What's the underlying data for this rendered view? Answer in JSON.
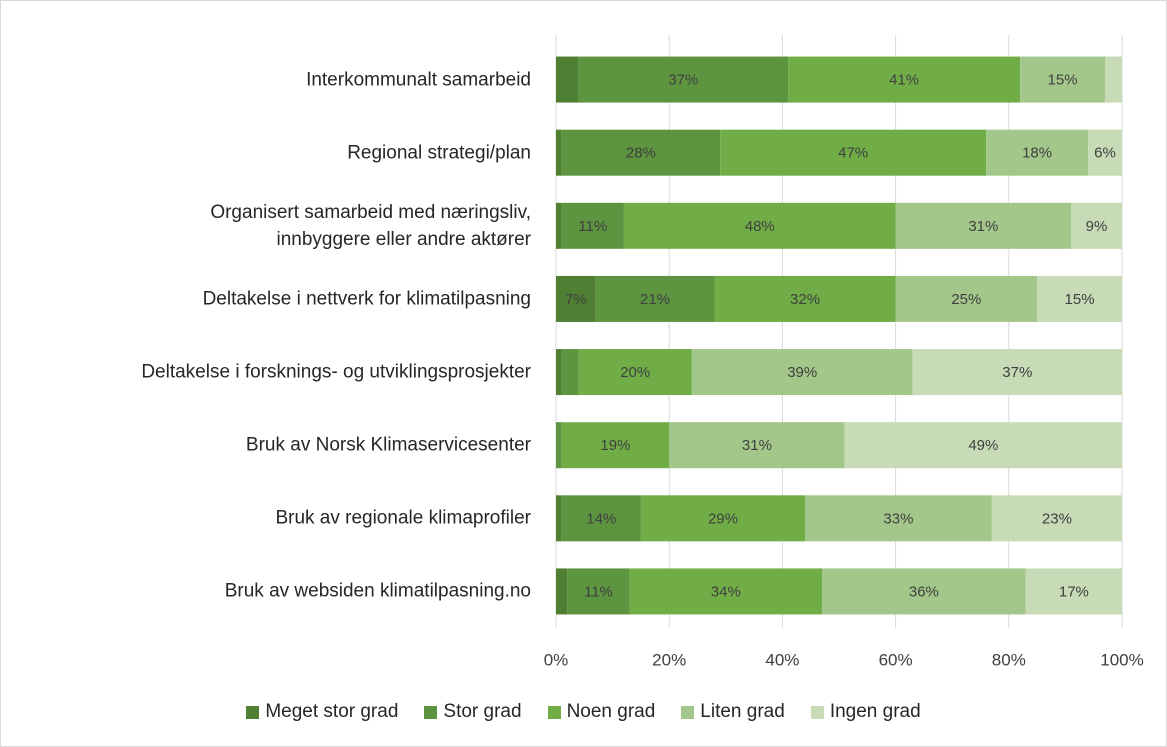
{
  "chart_data": {
    "type": "stacked_bar_horizontal",
    "categories": [
      "Interkommunalt samarbeid",
      "Regional strategi/plan",
      "Organisert samarbeid med næringsliv,\ninnbyggere eller andre aktører",
      "Deltakelse i nettverk for klimatilpasning",
      "Deltakelse i forsknings- og utviklingsprosjekter",
      "Bruk av Norsk Klimaservicesenter",
      "Bruk av regionale klimaprofiler",
      "Bruk av websiden klimatilpasning.no"
    ],
    "series": [
      {
        "name": "Meget stor grad",
        "color": "#4f7f33",
        "values": [
          4,
          1,
          1,
          7,
          1,
          0,
          1,
          2
        ],
        "value_labels": [
          null,
          null,
          null,
          "7%",
          null,
          null,
          null,
          null
        ]
      },
      {
        "name": "Stor grad",
        "color": "#5c9440",
        "values": [
          37,
          28,
          11,
          21,
          3,
          1,
          14,
          11
        ],
        "value_labels": [
          "37%",
          "28%",
          "11%",
          "21%",
          null,
          null,
          "14%",
          "11%"
        ]
      },
      {
        "name": "Noen grad",
        "color": "#70ad47",
        "values": [
          41,
          47,
          48,
          32,
          20,
          19,
          29,
          34
        ],
        "value_labels": [
          "41%",
          "47%",
          "48%",
          "32%",
          "20%",
          "19%",
          "29%",
          "34%"
        ]
      },
      {
        "name": "Liten grad",
        "color": "#a3c68a",
        "values": [
          15,
          18,
          31,
          25,
          39,
          31,
          33,
          36
        ],
        "value_labels": [
          "15%",
          "18%",
          "31%",
          "25%",
          "39%",
          "31%",
          "33%",
          "36%"
        ]
      },
      {
        "name": "Ingen grad",
        "color": "#c6dbb6",
        "values": [
          3,
          6,
          9,
          15,
          37,
          49,
          23,
          17
        ],
        "value_labels": [
          null,
          "6%",
          "9%",
          "15%",
          "37%",
          "49%",
          "23%",
          "17%"
        ]
      }
    ],
    "xlim": [
      0,
      100
    ],
    "xticks": [
      {
        "value": 0,
        "label": "0%"
      },
      {
        "value": 20,
        "label": "20%"
      },
      {
        "value": 40,
        "label": "40%"
      },
      {
        "value": 60,
        "label": "60%"
      },
      {
        "value": 80,
        "label": "80%"
      },
      {
        "value": 100,
        "label": "100%"
      }
    ],
    "grid": true,
    "legend": "bottom"
  }
}
